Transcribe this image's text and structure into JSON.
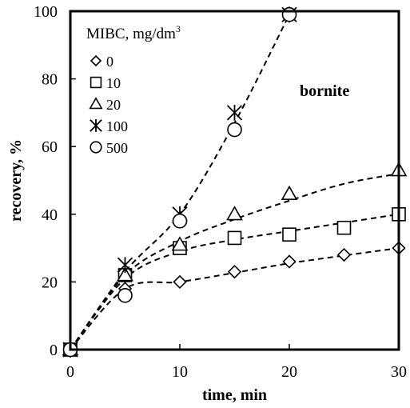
{
  "chart_data": {
    "type": "line",
    "xlabel": "time, min",
    "ylabel": "recovery, %",
    "xlim": [
      0,
      30
    ],
    "ylim": [
      0,
      100
    ],
    "xticks": [
      0,
      10,
      20,
      30
    ],
    "yticks": [
      0,
      20,
      40,
      60,
      80,
      100
    ],
    "grid": false,
    "legend": {
      "title_main": "MIBC, mg/dm",
      "title_sup": "3",
      "placement": "top-left"
    },
    "annotation": "bornite",
    "series": [
      {
        "name": "0",
        "marker": "diamond",
        "points": [
          [
            0,
            0
          ],
          [
            5,
            18
          ],
          [
            10,
            20
          ],
          [
            15,
            23
          ],
          [
            20,
            26
          ],
          [
            25,
            28
          ],
          [
            30,
            30
          ]
        ],
        "curve": [
          [
            0,
            0
          ],
          [
            5,
            18
          ],
          [
            10,
            20
          ],
          [
            15,
            22.7
          ],
          [
            20,
            25.5
          ],
          [
            25,
            27.8
          ],
          [
            30,
            30
          ]
        ]
      },
      {
        "name": "10",
        "marker": "square",
        "points": [
          [
            0,
            0
          ],
          [
            5,
            22
          ],
          [
            10,
            30
          ],
          [
            15,
            33
          ],
          [
            20,
            34
          ],
          [
            25,
            36
          ],
          [
            30,
            40
          ]
        ],
        "curve": [
          [
            0,
            0
          ],
          [
            5,
            21
          ],
          [
            10,
            29
          ],
          [
            15,
            32.5
          ],
          [
            20,
            35
          ],
          [
            25,
            37.5
          ],
          [
            30,
            40
          ]
        ]
      },
      {
        "name": "20",
        "marker": "triangle",
        "points": [
          [
            0,
            0
          ],
          [
            5,
            22
          ],
          [
            10,
            31
          ],
          [
            15,
            40
          ],
          [
            20,
            46
          ],
          [
            30,
            53
          ]
        ],
        "curve": [
          [
            0,
            0
          ],
          [
            5,
            22
          ],
          [
            10,
            32
          ],
          [
            15,
            38.5
          ],
          [
            20,
            44
          ],
          [
            25,
            49
          ],
          [
            30,
            52
          ]
        ]
      },
      {
        "name": "100",
        "marker": "asterisk",
        "points": [
          [
            0,
            0
          ],
          [
            5,
            25
          ],
          [
            10,
            40
          ],
          [
            15,
            70
          ],
          [
            20,
            99
          ]
        ],
        "curve": [
          [
            0,
            0
          ],
          [
            5,
            23
          ],
          [
            10,
            40
          ],
          [
            15,
            67
          ],
          [
            20,
            99
          ]
        ]
      },
      {
        "name": "500",
        "marker": "circle",
        "points": [
          [
            0,
            0
          ],
          [
            5,
            16
          ],
          [
            10,
            38
          ],
          [
            15,
            65
          ],
          [
            20,
            99
          ]
        ],
        "curve": null
      }
    ]
  }
}
